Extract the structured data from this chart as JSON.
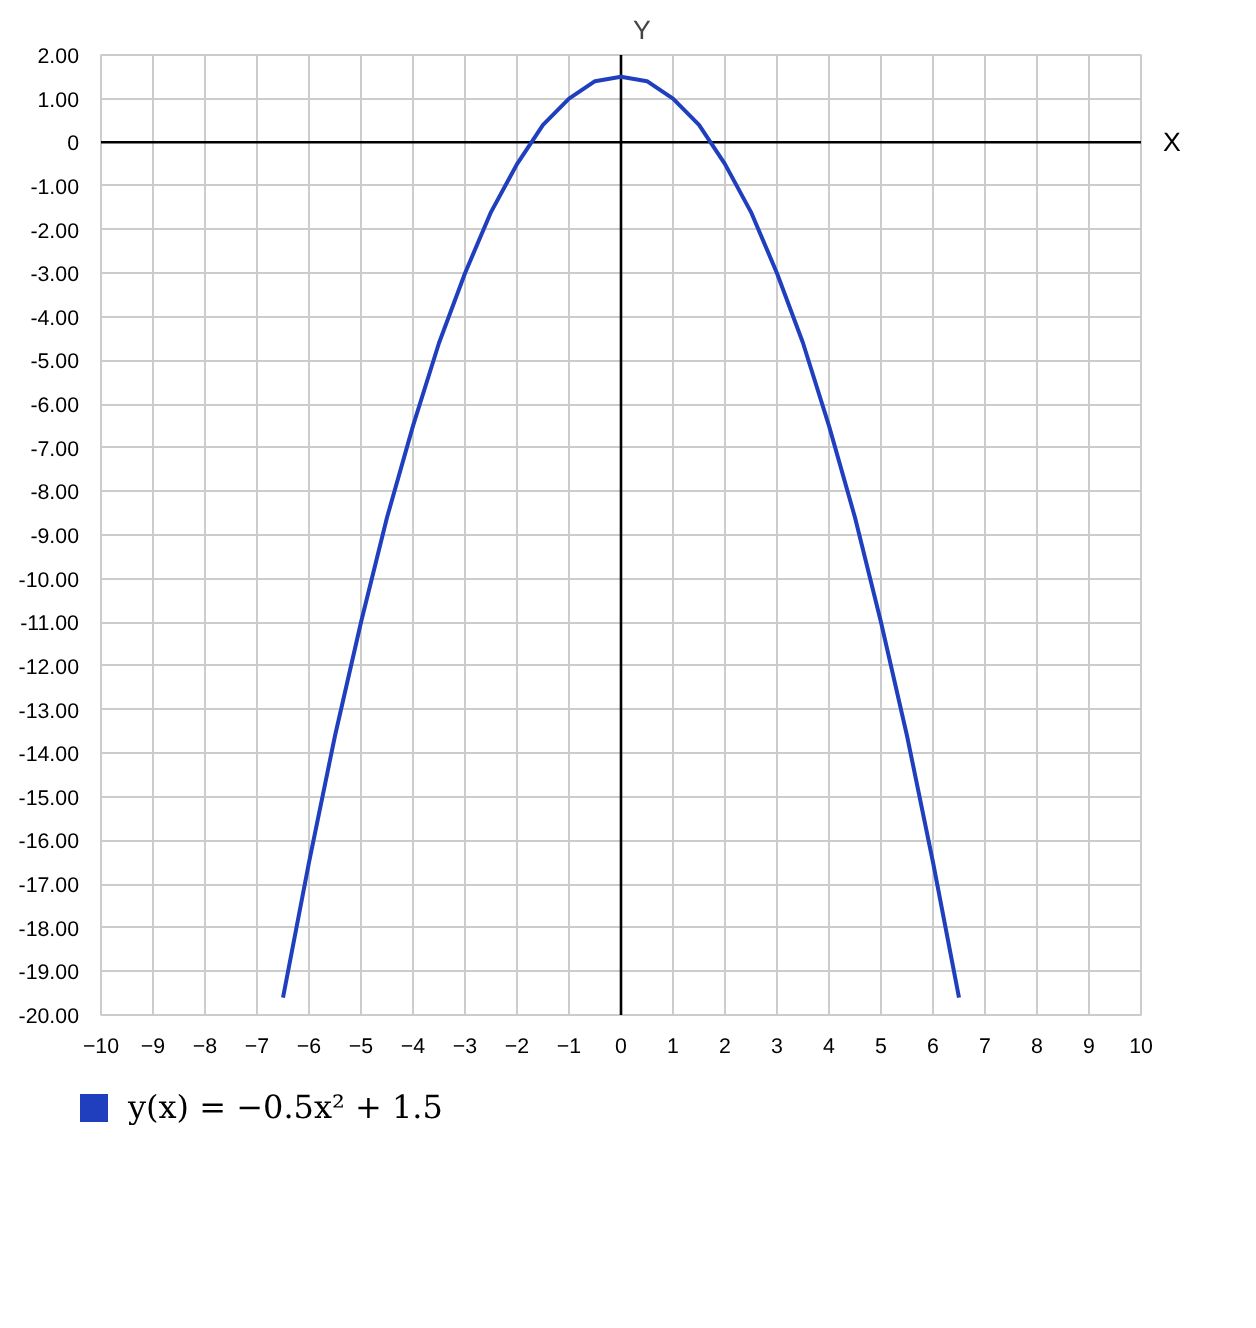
{
  "chart_data": {
    "type": "line",
    "xlabel": "X",
    "ylabel": "Y",
    "x": [
      -6.5,
      -6,
      -5.5,
      -5,
      -4.5,
      -4,
      -3.5,
      -3,
      -2.5,
      -2,
      -1.5,
      -1,
      -0.5,
      0,
      0.5,
      1,
      1.5,
      2,
      2.5,
      3,
      3.5,
      4,
      4.5,
      5,
      5.5,
      6,
      6.5
    ],
    "series": [
      {
        "name": "y(x) = −0.5x² + 1.5",
        "color": "#1f3fbf",
        "values": [
          -19.6,
          -16.5,
          -13.6,
          -11,
          -8.6,
          -6.5,
          -4.6,
          -3,
          -1.6,
          -0.5,
          0.4,
          1,
          1.4,
          1.5,
          1.4,
          1,
          0.4,
          -0.5,
          -1.6,
          -3,
          -4.6,
          -6.5,
          -8.6,
          -11,
          -13.6,
          -16.5,
          -19.6
        ]
      }
    ],
    "xlim": [
      -10,
      10
    ],
    "ylim": [
      -20,
      2
    ],
    "xticks": [
      -10,
      -9,
      -8,
      -7,
      -6,
      -5,
      -4,
      -3,
      -2,
      -1,
      0,
      1,
      2,
      3,
      4,
      5,
      6,
      7,
      8,
      9,
      10
    ],
    "yticks": [
      {
        "value": 2,
        "label": "2.00"
      },
      {
        "value": 1,
        "label": "1.00"
      },
      0,
      {
        "value": -1,
        "label": "-1.00"
      },
      {
        "value": -2,
        "label": "-2.00"
      },
      {
        "value": -3,
        "label": "-3.00"
      },
      {
        "value": -4,
        "label": "-4.00"
      },
      {
        "value": -5,
        "label": "-5.00"
      },
      {
        "value": -6,
        "label": "-6.00"
      },
      {
        "value": -7,
        "label": "-7.00"
      },
      {
        "value": -8,
        "label": "-8.00"
      },
      {
        "value": -9,
        "label": "-9.00"
      },
      {
        "value": -10,
        "label": "-10.00"
      },
      {
        "value": -11,
        "label": "-11.00"
      },
      {
        "value": -12,
        "label": "-12.00"
      },
      {
        "value": -13,
        "label": "-13.00"
      },
      {
        "value": -14,
        "label": "-14.00"
      },
      {
        "value": -15,
        "label": "-15.00"
      },
      {
        "value": -16,
        "label": "-16.00"
      },
      {
        "value": -17,
        "label": "-17.00"
      },
      {
        "value": -18,
        "label": "-18.00"
      },
      {
        "value": -19,
        "label": "-19.00"
      },
      {
        "value": -20,
        "label": "-20.00"
      }
    ],
    "grid": true,
    "legend": "bottom",
    "line_style": "solid",
    "marker": "none"
  }
}
